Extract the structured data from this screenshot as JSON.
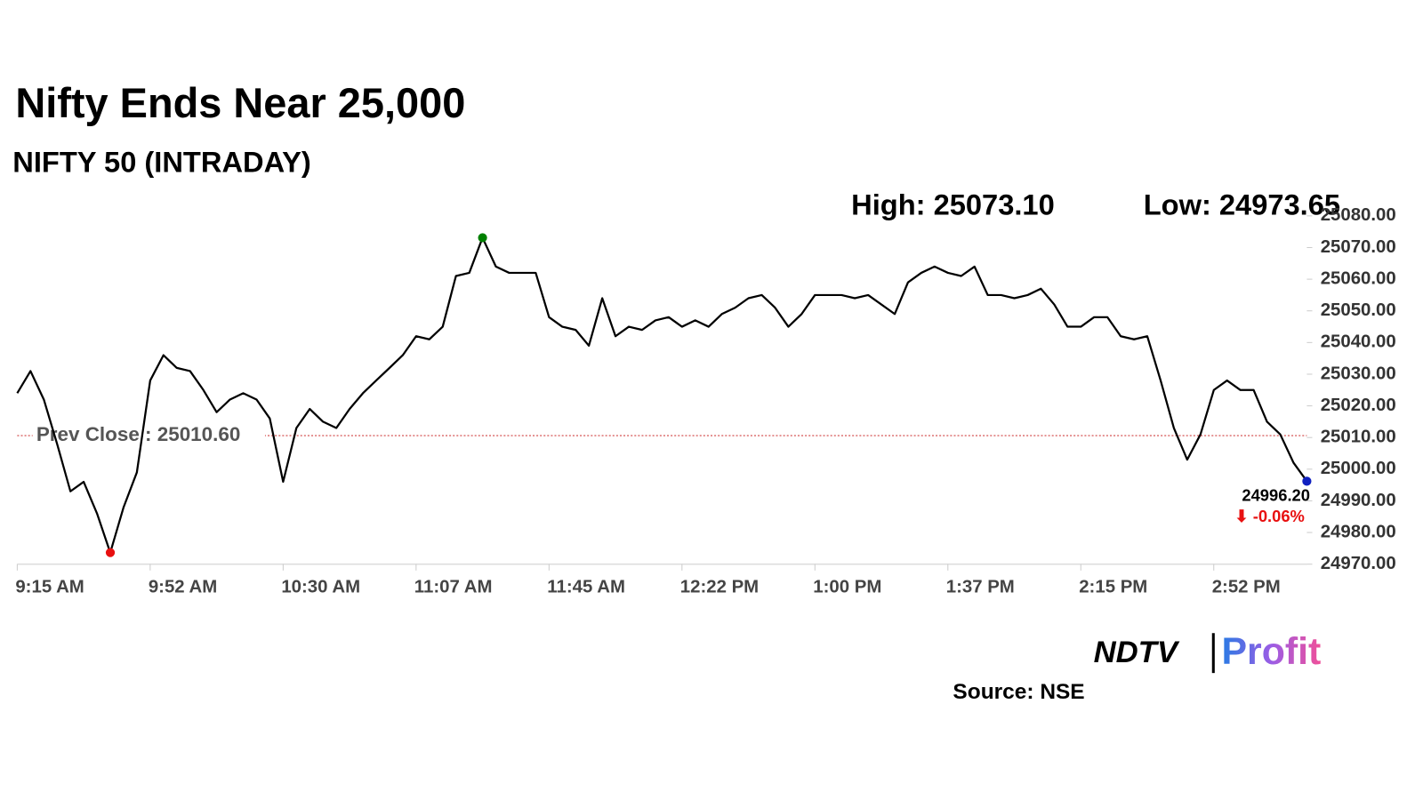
{
  "chart_data": {
    "type": "line",
    "title": "Nifty Ends Near 25,000",
    "subtitle": "NIFTY 50 (INTRADAY)",
    "categories": [
      "9:15 AM",
      null,
      null,
      null,
      null,
      null,
      null,
      null,
      null,
      null,
      "9:52 AM",
      null,
      null,
      null,
      null,
      null,
      null,
      null,
      null,
      null,
      "10:30 AM",
      null,
      null,
      null,
      null,
      null,
      null,
      null,
      null,
      null,
      "11:07 AM",
      null,
      null,
      null,
      null,
      null,
      null,
      null,
      null,
      null,
      "11:45 AM",
      null,
      null,
      null,
      null,
      null,
      null,
      null,
      null,
      null,
      "12:22 PM",
      null,
      null,
      null,
      null,
      null,
      null,
      null,
      null,
      null,
      "1:00 PM",
      null,
      null,
      null,
      null,
      null,
      null,
      null,
      null,
      null,
      "1:37 PM",
      null,
      null,
      null,
      null,
      null,
      null,
      null,
      null,
      null,
      "2:15 PM",
      null,
      null,
      null,
      null,
      null,
      null,
      null,
      null,
      null,
      "2:52 PM",
      null,
      null,
      null,
      null,
      null,
      null,
      null
    ],
    "values": [
      25024,
      25031,
      25022,
      25008,
      24993,
      24996,
      24986,
      24973.65,
      24988,
      24999,
      25028,
      25036,
      25032,
      25031,
      25025,
      25018,
      25022,
      25024,
      25022,
      25016,
      24996,
      25013,
      25019,
      25015,
      25013,
      25019,
      25024,
      25028,
      25032,
      25036,
      25042,
      25041,
      25045,
      25061,
      25062,
      25073.1,
      25064,
      25062,
      25062,
      25062,
      25048,
      25045,
      25044,
      25039,
      25054,
      25042,
      25045,
      25044,
      25047,
      25048,
      25045,
      25047,
      25045,
      25049,
      25051,
      25054,
      25055,
      25051,
      25045,
      25049,
      25055,
      25055,
      25055,
      25054,
      25055,
      25052,
      25049,
      25059,
      25062,
      25064,
      25062,
      25061,
      25064,
      25055,
      25055,
      25054,
      25055,
      25057,
      25052,
      25045,
      25045,
      25048,
      25048,
      25042,
      25041,
      25042,
      25028,
      25013,
      25003,
      25011,
      25025,
      25028,
      25025,
      25025,
      25015,
      25011,
      25002,
      24996.2
    ],
    "color": "#000000",
    "ylim": [
      24970,
      25080
    ],
    "yticks": [
      {
        "value": 24970,
        "label": "24970.00"
      },
      {
        "value": 24980,
        "label": "24980.00"
      },
      {
        "value": 24990,
        "label": "24990.00"
      },
      {
        "value": 25000,
        "label": "25000.00"
      },
      {
        "value": 25010,
        "label": "25010.00"
      },
      {
        "value": 25020,
        "label": "25020.00"
      },
      {
        "value": 25030,
        "label": "25030.00"
      },
      {
        "value": 25040,
        "label": "25040.00"
      },
      {
        "value": 25050,
        "label": "25050.00"
      },
      {
        "value": 25060,
        "label": "25060.00"
      },
      {
        "value": 25070,
        "label": "25070.00"
      },
      {
        "value": 25080,
        "label": "25080.00"
      }
    ],
    "high": {
      "value": 25073.1,
      "label": "High: 25073.10",
      "color": "#008000"
    },
    "low": {
      "value": 24973.65,
      "label": "Low: 24973.65",
      "color": "#e81010"
    },
    "last": {
      "value": 24996.2,
      "label": "24996.20",
      "color": "#1020c0"
    },
    "change": {
      "value": -0.06,
      "label": "⬇ -0.06%",
      "color": "#e81010"
    },
    "prev_close": {
      "value": 25010.6,
      "label": "Prev Close : 25010.60",
      "color": "#d04040"
    }
  },
  "logo": {
    "left": "NDTV",
    "right": "Profit"
  },
  "source": "Source: NSE"
}
